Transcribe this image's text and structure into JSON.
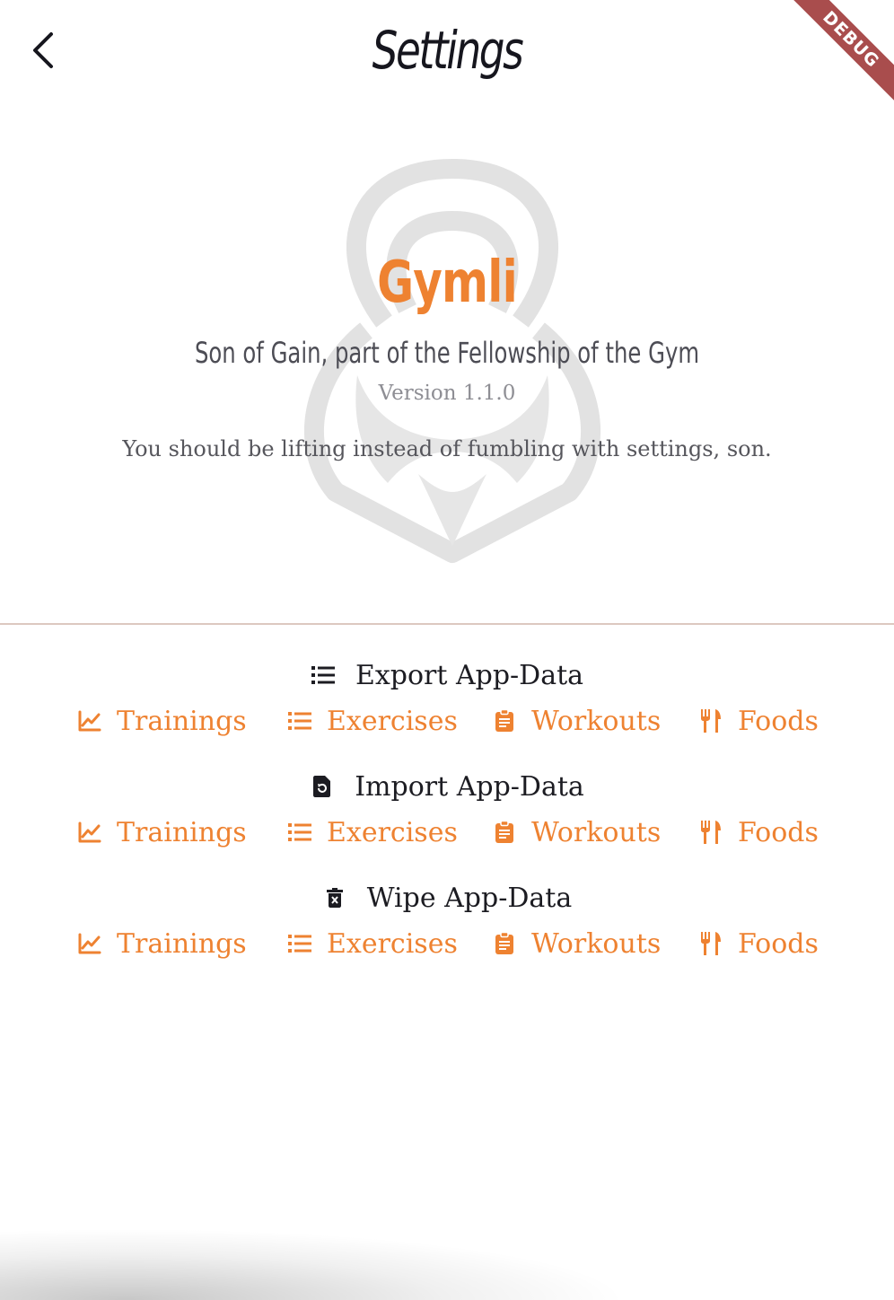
{
  "header": {
    "title": "Settings",
    "debug_badge": "DEBUG"
  },
  "hero": {
    "app_name": "Gymli",
    "tagline": "Son of Gain, part of the Fellowship of the Gym",
    "version": "Version 1.1.0",
    "note": "You should be lifting instead of fumbling with settings, son."
  },
  "sections": [
    {
      "label": "Export App-Data",
      "icon": "list-icon",
      "items": [
        {
          "label": "Trainings",
          "icon": "chart-line-icon"
        },
        {
          "label": "Exercises",
          "icon": "list-icon"
        },
        {
          "label": "Workouts",
          "icon": "clipboard-icon"
        },
        {
          "label": "Foods",
          "icon": "restaurant-icon"
        }
      ]
    },
    {
      "label": "Import App-Data",
      "icon": "file-restore-icon",
      "items": [
        {
          "label": "Trainings",
          "icon": "chart-line-icon"
        },
        {
          "label": "Exercises",
          "icon": "list-icon"
        },
        {
          "label": "Workouts",
          "icon": "clipboard-icon"
        },
        {
          "label": "Foods",
          "icon": "restaurant-icon"
        }
      ]
    },
    {
      "label": "Wipe App-Data",
      "icon": "delete-icon",
      "items": [
        {
          "label": "Trainings",
          "icon": "chart-line-icon"
        },
        {
          "label": "Exercises",
          "icon": "list-icon"
        },
        {
          "label": "Workouts",
          "icon": "clipboard-icon"
        },
        {
          "label": "Foods",
          "icon": "restaurant-icon"
        }
      ]
    }
  ],
  "colors": {
    "accent": "#ee8231",
    "text": "#1c1c22",
    "muted": "#8e8e94",
    "debug": "#a03a3a"
  }
}
